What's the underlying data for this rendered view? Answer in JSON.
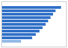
{
  "chart_data": {
    "type": "bar",
    "orientation": "horizontal",
    "categories": [
      null,
      null,
      null,
      null,
      null,
      null,
      null,
      null,
      null,
      null,
      null
    ],
    "values": [
      97,
      88,
      84,
      80,
      76,
      72,
      67,
      62,
      56,
      50,
      32
    ],
    "colors": [
      "#3070c8",
      "#3070c8",
      "#3070c8",
      "#3070c8",
      "#3070c8",
      "#3070c8",
      "#3070c8",
      "#3070c8",
      "#3070c8",
      "#3070c8",
      "#90b8e8"
    ],
    "xlim": [
      0,
      105
    ],
    "tick_labels": false
  }
}
